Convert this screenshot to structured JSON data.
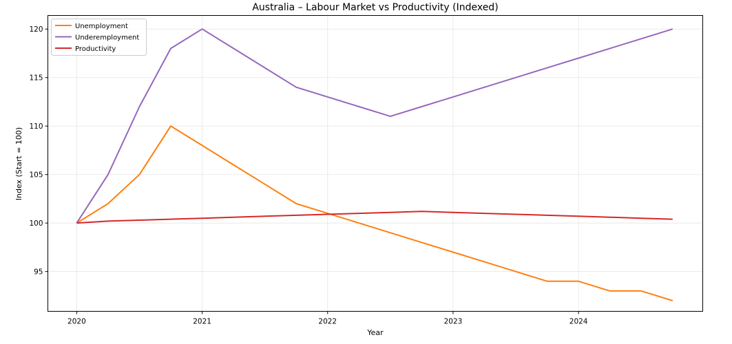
{
  "chart_data": {
    "type": "line",
    "title": "Australia – Labour Market vs Productivity (Indexed)",
    "xlabel": "Year",
    "ylabel": "Index (Start = 100)",
    "xlim": [
      2019.77,
      2024.99
    ],
    "ylim": [
      90.9,
      121.4
    ],
    "xticks": [
      2020,
      2021,
      2022,
      2023,
      2024
    ],
    "xtick_labels": [
      "2020",
      "2021",
      "2022",
      "2023",
      "2024"
    ],
    "yticks": [
      95,
      100,
      105,
      110,
      115,
      120
    ],
    "ytick_labels": [
      "95",
      "100",
      "105",
      "110",
      "115",
      "120"
    ],
    "grid": true,
    "legend_position": "top-left",
    "x": [
      2020,
      2020.25,
      2020.5,
      2020.75,
      2021,
      2021.25,
      2021.5,
      2021.75,
      2022,
      2022.25,
      2022.5,
      2022.75,
      2023,
      2023.25,
      2023.5,
      2023.75,
      2024,
      2024.25,
      2024.5,
      2024.75
    ],
    "series": [
      {
        "name": "Unemployment",
        "color": "#ff7f0e",
        "values": [
          100,
          102,
          105,
          110,
          108,
          106,
          104,
          102,
          101,
          100,
          99,
          98,
          97,
          96,
          95,
          94,
          94,
          93,
          93,
          92
        ]
      },
      {
        "name": "Underemployment",
        "color": "#9467bd",
        "values": [
          100,
          105,
          112,
          118,
          120,
          118,
          116,
          114,
          113,
          112,
          111,
          112,
          113,
          114,
          115,
          116,
          117,
          118,
          119,
          120
        ]
      },
      {
        "name": "Productivity",
        "color": "#d62728",
        "values": [
          100,
          100.2,
          100.3,
          100.4,
          100.5,
          100.6,
          100.7,
          100.8,
          100.9,
          101.0,
          101.1,
          101.2,
          101.1,
          101.0,
          100.9,
          100.8,
          100.7,
          100.6,
          100.5,
          100.4
        ]
      }
    ]
  }
}
